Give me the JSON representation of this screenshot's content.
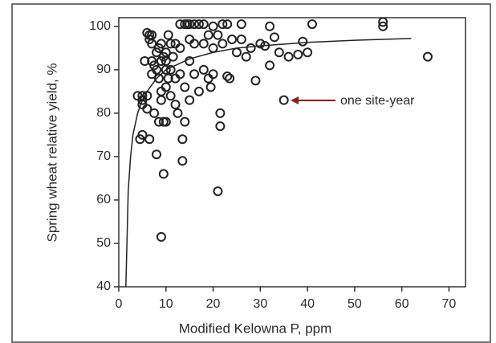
{
  "chart_data": {
    "type": "scatter",
    "y_label": "Spring wheat relative yield, %",
    "x_label": "Modified Kelowna P, ppm",
    "annotation": "one site-year",
    "xlim": [
      0,
      73.5
    ],
    "ylim": [
      40,
      102
    ],
    "xticks": [
      0,
      10,
      20,
      30,
      40,
      50,
      60,
      70
    ],
    "yticks": [
      40,
      50,
      60,
      70,
      80,
      90,
      100
    ],
    "grid": false,
    "series": [
      {
        "type": "scatter",
        "color": "#222222",
        "x": [
          4.5,
          5,
          5,
          5,
          5.5,
          6,
          6,
          6.5,
          6.5,
          7,
          7,
          7,
          7,
          6.5,
          7.5,
          7.5,
          8,
          8,
          8,
          8.5,
          8.5,
          8.5,
          9,
          9,
          9,
          9,
          9,
          9.5,
          9.5,
          9.5,
          10,
          10,
          10,
          10,
          10,
          10.5,
          10.5,
          11,
          11,
          11,
          11.5,
          12,
          12,
          12,
          12.5,
          13,
          13,
          13,
          13.5,
          13.5,
          14,
          14,
          14,
          14.5,
          15,
          15,
          15,
          15,
          16,
          16,
          16,
          17,
          17,
          18,
          18,
          18,
          19,
          19,
          19.5,
          20,
          20,
          20,
          21,
          21,
          21.5,
          21.5,
          22,
          22,
          23,
          23,
          23.5,
          24,
          25,
          26,
          26,
          27,
          28,
          29,
          30,
          31,
          32,
          32,
          33,
          34,
          35,
          36,
          38,
          39,
          40,
          41,
          56,
          56,
          65.5,
          4,
          5,
          6
        ],
        "values": [
          74,
          83,
          84,
          82,
          92,
          81,
          84,
          98,
          97,
          98,
          96,
          92,
          89,
          74,
          80,
          91,
          70.5,
          90,
          94,
          95,
          88,
          78,
          51.5,
          92,
          96,
          85,
          83,
          78,
          66,
          93,
          90,
          92,
          78,
          86,
          94,
          98,
          88,
          96,
          90,
          84,
          93,
          96,
          88,
          82,
          80,
          95,
          89,
          100.5,
          74,
          69,
          100.5,
          78,
          86,
          100.5,
          100.5,
          97,
          92,
          83,
          100.5,
          96,
          89,
          100.5,
          85,
          100.5,
          96,
          90,
          98,
          88,
          86,
          100,
          95,
          89,
          62,
          98,
          80,
          77,
          100.5,
          96,
          88.5,
          100.5,
          88,
          97,
          94,
          100.5,
          97,
          93,
          95,
          87.5,
          96,
          95.5,
          100,
          91,
          97.5,
          94,
          83,
          93,
          93.5,
          96.5,
          94,
          100.5,
          101,
          100,
          93,
          84,
          75,
          98.5
        ]
      },
      {
        "type": "line",
        "color": "#222222",
        "x": [
          1.5,
          2,
          2.5,
          3,
          4,
          5,
          6,
          8,
          10,
          12,
          15,
          20,
          25,
          30,
          40,
          50,
          62
        ],
        "values": [
          40,
          62,
          70,
          75,
          80,
          83,
          85,
          88,
          90,
          91,
          92.5,
          94,
          95,
          95.5,
          96.3,
          96.8,
          97.2
        ]
      }
    ]
  }
}
